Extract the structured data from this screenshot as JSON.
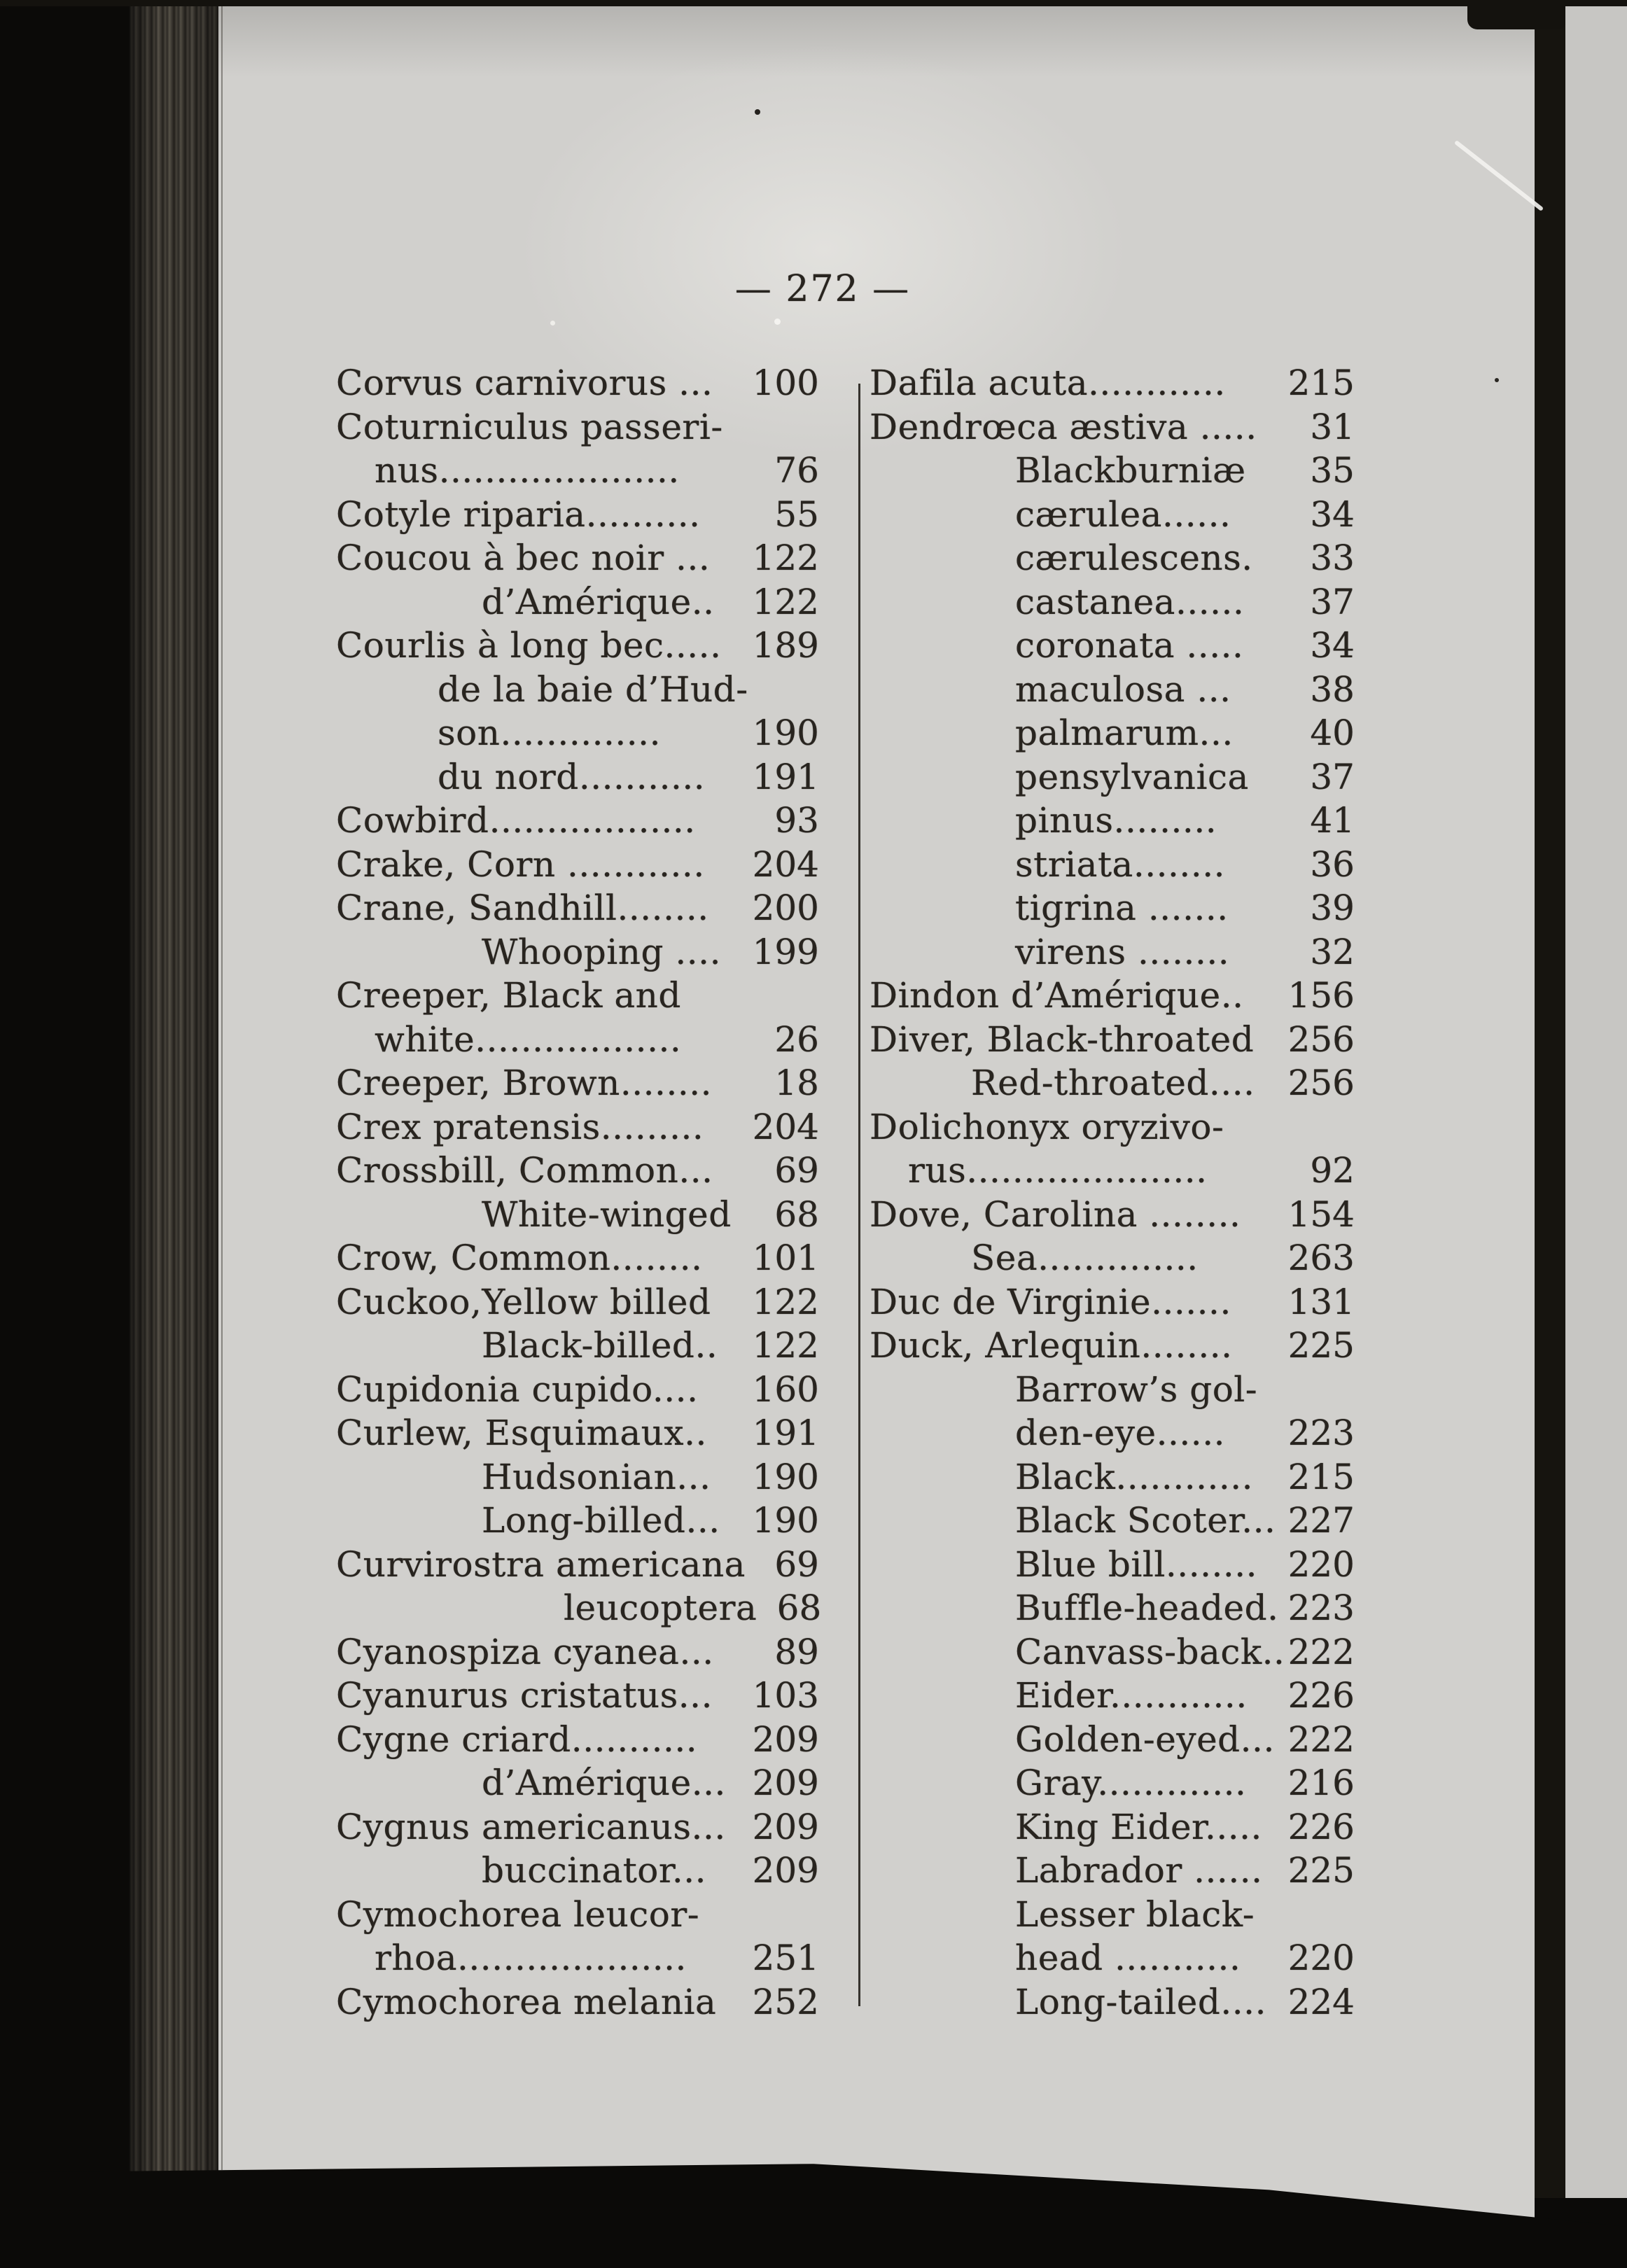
{
  "colors": {
    "paper": "#d1d0cd",
    "ink": "#28241f",
    "surround": "#0b0a08",
    "spine": "#4a453d",
    "adjacent": "#c7c6c3"
  },
  "page": {
    "header": "— 272 —",
    "columns": [
      {
        "side": "left",
        "lines": [
          {
            "t": "Corvus carnivorus ...",
            "n": "100",
            "i": 0
          },
          {
            "t": "Coturniculus passeri-",
            "n": "",
            "i": 0
          },
          {
            "t": "nus.....................",
            "n": "76",
            "i": 1
          },
          {
            "t": "Cotyle riparia..........",
            "n": "55",
            "i": 0
          },
          {
            "t": "Coucou à bec noir ...",
            "n": "122",
            "i": 0
          },
          {
            "t": "d’Amérique..",
            "n": "122",
            "i": 3
          },
          {
            "t": "Courlis à long bec.....",
            "n": "189",
            "i": 0
          },
          {
            "t": "de la baie d’Hud-",
            "n": "",
            "i": 2
          },
          {
            "t": "son..............",
            "n": "190",
            "i": 2
          },
          {
            "t": "du nord...........",
            "n": "191",
            "i": 2
          },
          {
            "t": "Cowbird..................",
            "n": "93",
            "i": 0
          },
          {
            "t": "Crake, Corn ............",
            "n": "204",
            "i": 0
          },
          {
            "t": "Crane, Sandhill........",
            "n": "200",
            "i": 0
          },
          {
            "t": "Whooping ....",
            "n": "199",
            "i": 3
          },
          {
            "t": "Creeper, Black and",
            "n": "",
            "i": 0
          },
          {
            "t": "white..................",
            "n": "26",
            "i": 1
          },
          {
            "t": "Creeper, Brown........",
            "n": "18",
            "i": 0
          },
          {
            "t": "Crex pratensis.........",
            "n": "204",
            "i": 0
          },
          {
            "t": "Crossbill, Common...",
            "n": "69",
            "i": 0
          },
          {
            "t": "White-winged",
            "n": "68",
            "i": 3
          },
          {
            "t": "Crow, Common........",
            "n": "101",
            "i": 0
          },
          {
            "t": "Cuckoo,Yellow billed",
            "n": "122",
            "i": 0
          },
          {
            "t": "Black-billed..",
            "n": "122",
            "i": 3
          },
          {
            "t": "Cupidonia cupido....",
            "n": "160",
            "i": 0
          },
          {
            "t": "Curlew, Esquimaux..",
            "n": "191",
            "i": 0
          },
          {
            "t": "Hudsonian...",
            "n": "190",
            "i": 3
          },
          {
            "t": "Long-billed...",
            "n": "190",
            "i": 3
          },
          {
            "t": "Curvirostra americana",
            "n": "69",
            "i": 0
          },
          {
            "t": "leucoptera",
            "n": "68",
            "i": 4
          },
          {
            "t": "Cyanospiza cyanea...",
            "n": "89",
            "i": 0
          },
          {
            "t": "Cyanurus cristatus...",
            "n": "103",
            "i": 0
          },
          {
            "t": "Cygne criard...........",
            "n": "209",
            "i": 0
          },
          {
            "t": "d’Amérique...",
            "n": "209",
            "i": 3
          },
          {
            "t": "Cygnus americanus...",
            "n": "209",
            "i": 0
          },
          {
            "t": "buccinator...",
            "n": "209",
            "i": 3
          },
          {
            "t": "Cymochorea leucor-",
            "n": "",
            "i": 0
          },
          {
            "t": "rhoa....................",
            "n": "251",
            "i": 1
          },
          {
            "t": "Cymochorea melania",
            "n": "252",
            "i": 0
          }
        ]
      },
      {
        "side": "right",
        "lines": [
          {
            "t": "Dafila acuta............",
            "n": "215",
            "i": 0
          },
          {
            "t": "Dendrœca æstiva .....",
            "n": "31",
            "i": 0
          },
          {
            "t": "Blackburniæ",
            "n": "35",
            "i": 3
          },
          {
            "t": "cærulea......",
            "n": "34",
            "i": 3
          },
          {
            "t": "cærulescens.",
            "n": "33",
            "i": 3
          },
          {
            "t": "castanea......",
            "n": "37",
            "i": 3
          },
          {
            "t": "coronata .....",
            "n": "34",
            "i": 3
          },
          {
            "t": "maculosa ...",
            "n": "38",
            "i": 3
          },
          {
            "t": "palmarum...",
            "n": "40",
            "i": 3
          },
          {
            "t": "pensylvanica",
            "n": "37",
            "i": 3
          },
          {
            "t": "pinus.........",
            "n": "41",
            "i": 3
          },
          {
            "t": "striata........",
            "n": "36",
            "i": 3
          },
          {
            "t": "tigrina .......",
            "n": "39",
            "i": 3
          },
          {
            "t": "virens ........",
            "n": "32",
            "i": 3
          },
          {
            "t": "Dindon d’Amérique..",
            "n": "156",
            "i": 0
          },
          {
            "t": "Diver, Black-throated",
            "n": "256",
            "i": 0
          },
          {
            "t": "Red-throated....",
            "n": "256",
            "i": 2
          },
          {
            "t": "Dolichonyx oryzivo-",
            "n": "",
            "i": 0
          },
          {
            "t": "rus.....................",
            "n": "92",
            "i": 1
          },
          {
            "t": "Dove, Carolina ........",
            "n": "154",
            "i": 0
          },
          {
            "t": "Sea..............",
            "n": "263",
            "i": 2
          },
          {
            "t": "Duc de Virginie.......",
            "n": "131",
            "i": 0
          },
          {
            "t": "Duck, Arlequin........",
            "n": "225",
            "i": 0
          },
          {
            "t": "Barrow’s gol-",
            "n": "",
            "i": 3
          },
          {
            "t": "den-eye......",
            "n": "223",
            "i": 3
          },
          {
            "t": "Black............",
            "n": "215",
            "i": 3
          },
          {
            "t": "Black Scoter...",
            "n": "227",
            "i": 3
          },
          {
            "t": "Blue bill........",
            "n": "220",
            "i": 3
          },
          {
            "t": "Buffle-headed.",
            "n": "223",
            "i": 3
          },
          {
            "t": "Canvass-back..",
            "n": "222",
            "i": 3
          },
          {
            "t": "Eider............",
            "n": "226",
            "i": 3
          },
          {
            "t": "Golden-eyed...",
            "n": "222",
            "i": 3
          },
          {
            "t": "Gray.............",
            "n": "216",
            "i": 3
          },
          {
            "t": "King Eider.....",
            "n": "226",
            "i": 3
          },
          {
            "t": "Labrador ......",
            "n": "225",
            "i": 3
          },
          {
            "t": "Lesser black-",
            "n": "",
            "i": 3
          },
          {
            "t": "head ...........",
            "n": "220",
            "i": 3
          },
          {
            "t": "Long-tailed....",
            "n": "224",
            "i": 3
          }
        ]
      }
    ]
  }
}
